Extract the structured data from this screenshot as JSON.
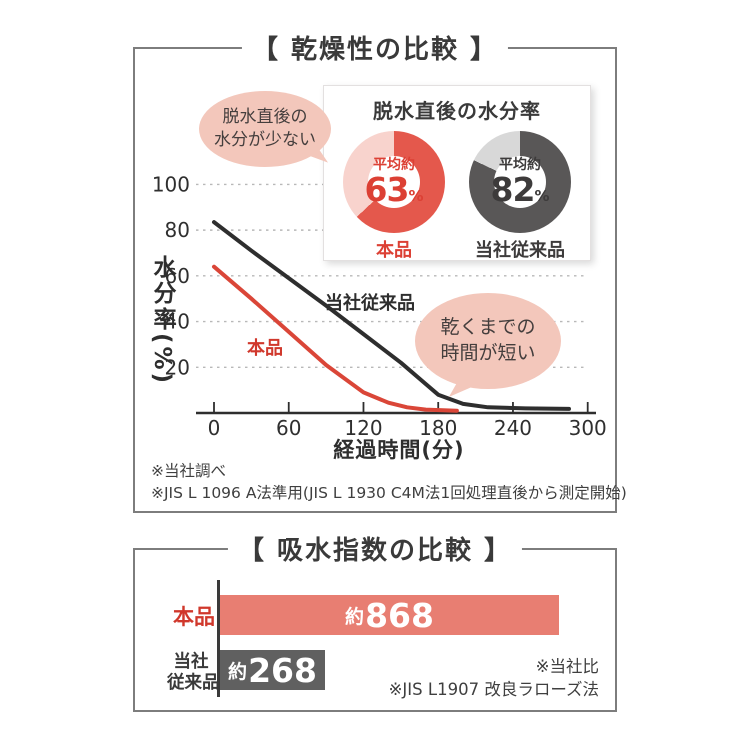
{
  "colors": {
    "accent_red": "#dc4034",
    "line_red": "#da4638",
    "line_black": "#2e2e2e",
    "bar_red": "#e87e72",
    "bar_gray": "#606060",
    "donut_red": "#e4584c",
    "donut_pink": "#f8d3cd",
    "donut_dark": "#595757",
    "donut_light_gray": "#d8d8d8",
    "bubble_pink": "#f3c7bb",
    "text_dark": "#3a3a3a"
  },
  "panel1": {
    "title": "【 乾燥性の比較 】",
    "bubble_left": {
      "line1": "脱水直後の",
      "line2": "水分が少ない"
    },
    "bubble_right": {
      "line1": "乾くまでの",
      "line2": "時間が短い"
    },
    "inset": {
      "title": "脱水直後の水分率",
      "donuts": [
        {
          "prefix": "平均約",
          "value": "63",
          "unit": "%",
          "label": "本品",
          "percent": 63,
          "color_main": "#e4584c",
          "color_rest": "#f8d3cd"
        },
        {
          "prefix": "平均約",
          "value": "82",
          "unit": "%",
          "label": "当社従来品",
          "percent": 82,
          "color_main": "#595757",
          "color_rest": "#d8d8d8"
        }
      ]
    },
    "chart_labels": {
      "ylabel": "水分率(%)",
      "xlabel": "経過時間(分)",
      "series_product": "本品",
      "series_conventional": "当社従来品"
    },
    "notes": [
      "※当社調べ",
      "※JIS L 1096 A法準用(JIS L 1930 C4M法1回処理直後から測定開始)"
    ]
  },
  "panel2": {
    "title": "【 吸水指数の比較 】",
    "bars": [
      {
        "label_lines": [
          "本品"
        ],
        "prefix": "約",
        "value": "868"
      },
      {
        "label_lines": [
          "当社",
          "従来品"
        ],
        "prefix": "約",
        "value": "268"
      }
    ],
    "notes": [
      "※当社比",
      "※JIS L1907 改良ラローズ法"
    ]
  },
  "chart_data": [
    {
      "type": "pie",
      "subtype": "donut",
      "title": "脱水直後の水分率",
      "series": [
        {
          "name": "本品",
          "label": "平均約63%",
          "value": 63
        },
        {
          "name": "当社従来品",
          "label": "平均約82%",
          "value": 82
        }
      ],
      "unit": "%"
    },
    {
      "type": "line",
      "title": "乾燥性の比較",
      "xlabel": "経過時間(分)",
      "ylabel": "水分率(%)",
      "xlim": [
        0,
        300
      ],
      "ylim": [
        0,
        100
      ],
      "xticks": [
        0,
        60,
        120,
        180,
        240,
        300
      ],
      "yticks": [
        20,
        40,
        60,
        80,
        100
      ],
      "grid": "horizontal-dashed",
      "legend_position": "inline-labels",
      "series": [
        {
          "name": "本品",
          "color": "#da4638",
          "points": [
            [
              0,
              64
            ],
            [
              30,
              50
            ],
            [
              60,
              35.5
            ],
            [
              90,
              21
            ],
            [
              120,
              9
            ],
            [
              140,
              4.5
            ],
            [
              155,
              2.5
            ],
            [
              170,
              1.5
            ],
            [
              195,
              1
            ]
          ]
        },
        {
          "name": "当社従来品",
          "color": "#2e2e2e",
          "points": [
            [
              0,
              83.5
            ],
            [
              30,
              71
            ],
            [
              60,
              59
            ],
            [
              90,
              47
            ],
            [
              120,
              34.5
            ],
            [
              150,
              22
            ],
            [
              180,
              8
            ],
            [
              200,
              4
            ],
            [
              220,
              2.5
            ],
            [
              250,
              2
            ],
            [
              285,
              1.8
            ]
          ]
        }
      ],
      "annotations": [
        "脱水直後の水分が少ない",
        "乾くまでの時間が短い"
      ]
    },
    {
      "type": "bar",
      "orientation": "horizontal",
      "title": "吸水指数の比較",
      "categories": [
        "本品",
        "当社従来品"
      ],
      "values": [
        868,
        268
      ],
      "value_labels": [
        "約868",
        "約268"
      ],
      "colors": [
        "#e87e72",
        "#606060"
      ]
    }
  ]
}
